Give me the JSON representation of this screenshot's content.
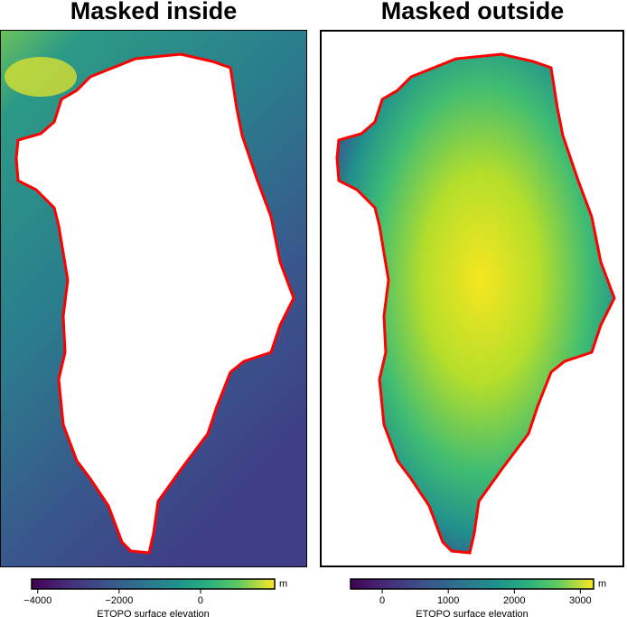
{
  "panels": [
    {
      "title": "Masked inside",
      "colorbar": {
        "range": [
          -4150,
          1820
        ],
        "ticks": [
          {
            "value": -4000,
            "label": "−4000"
          },
          {
            "value": -2000,
            "label": "−2000"
          },
          0
        ],
        "label": "ETOPO surface elevation",
        "unit": "m"
      }
    },
    {
      "title": "Masked outside",
      "colorbar": {
        "range": [
          -480,
          3200
        ],
        "ticks": [
          0,
          1000,
          2000,
          3000
        ],
        "label": "ETOPO surface elevation",
        "unit": "m"
      }
    }
  ]
}
